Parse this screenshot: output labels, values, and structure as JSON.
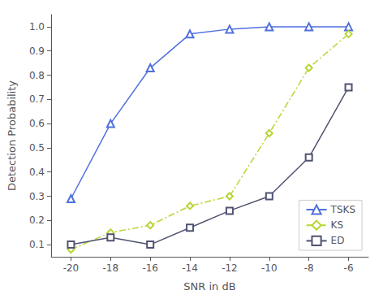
{
  "chart_data": {
    "type": "line",
    "xlabel": "SNR in dB",
    "ylabel": "Detection Probability",
    "x": [
      -20,
      -18,
      -16,
      -14,
      -12,
      -10,
      -8,
      -6
    ],
    "series": [
      {
        "name": "TSKS",
        "values": [
          0.29,
          0.6,
          0.83,
          0.97,
          0.99,
          1.0,
          1.0,
          1.0
        ],
        "marker": "triangle",
        "line_style": "solid"
      },
      {
        "name": "KS",
        "values": [
          0.08,
          0.15,
          0.18,
          0.26,
          0.3,
          0.56,
          0.83,
          0.97
        ],
        "marker": "diamond",
        "line_style": "dashdot"
      },
      {
        "name": "ED",
        "values": [
          0.1,
          0.13,
          0.1,
          0.17,
          0.24,
          0.3,
          0.46,
          0.75
        ],
        "marker": "square",
        "line_style": "solid"
      }
    ],
    "xlim": [
      -21,
      -5
    ],
    "ylim": [
      0.05,
      1.05
    ],
    "xticks": [
      -20,
      -18,
      -16,
      -14,
      -12,
      -10,
      -8,
      -6
    ],
    "yticks": [
      0.1,
      0.2,
      0.3,
      0.4,
      0.5,
      0.6,
      0.7,
      0.8,
      0.9,
      {
        "value": 1.0,
        "label": "1.0"
      }
    ],
    "grid": false,
    "legend": "lower right"
  }
}
